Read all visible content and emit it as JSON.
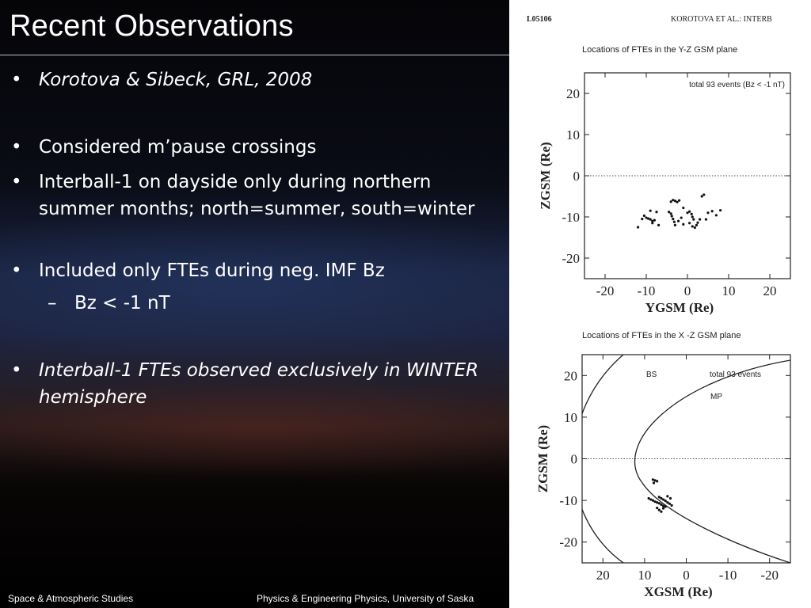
{
  "slide": {
    "title": "Recent Observations",
    "bullets": [
      {
        "text": "Korotova & Sibeck, GRL, 2008",
        "italic": true
      },
      {
        "text": "Considered m’pause crossings"
      },
      {
        "text": "Interball-1 on dayside only during northern summer months; north=summer, south=winter"
      },
      {
        "text": "Included only FTEs during neg. IMF Bz"
      },
      {
        "text": "Bz < -1 nT",
        "level": 2
      },
      {
        "text": "Interball-1 FTEs observed exclusively in WINTER hemisphere",
        "italic": true
      }
    ],
    "bullet_char": "•",
    "sub_bullet_char": "–",
    "footer_left": "Space & Atmospheric Studies",
    "footer_right": "Physics & Engineering Physics, University of Saska"
  },
  "paper": {
    "header_left": "L05106",
    "header_right": "KOROTOVA ET AL.: INTERB"
  },
  "chart_data": [
    {
      "type": "scatter",
      "title": "Locations of FTEs  in the Y-Z GSM plane",
      "annotation": "total 93 events  (Bz <  -1 nT)",
      "xlabel": "YGSM (Re)",
      "ylabel": "ZGSM (Re)",
      "xlim": [
        -25,
        25
      ],
      "ylim": [
        -25,
        25
      ],
      "xticks": [
        -20,
        -10,
        0,
        10,
        20
      ],
      "yticks": [
        20,
        10,
        0,
        -10,
        -20
      ],
      "zero_line": "dotted",
      "points": [
        [
          -12,
          -12.5
        ],
        [
          -11,
          -10.5
        ],
        [
          -10.5,
          -9.7
        ],
        [
          -10,
          -10.2
        ],
        [
          -9.5,
          -10.4
        ],
        [
          -9,
          -10.6
        ],
        [
          -8.5,
          -11
        ],
        [
          -8,
          -10.8
        ],
        [
          -9,
          -8.5
        ],
        [
          -8.5,
          -11.5
        ],
        [
          -7.5,
          -8.8
        ],
        [
          -7,
          -12
        ],
        [
          -4.5,
          -8.8
        ],
        [
          -4,
          -9.2
        ],
        [
          -3.8,
          -9.8
        ],
        [
          -3.5,
          -10.5
        ],
        [
          -3.2,
          -11.2
        ],
        [
          -3,
          -12
        ],
        [
          -4,
          -6.3
        ],
        [
          -3.5,
          -5.9
        ],
        [
          -3,
          -6.1
        ],
        [
          -2.5,
          -6.4
        ],
        [
          -2,
          -6.0
        ],
        [
          -1,
          -7.8
        ],
        [
          -1.5,
          -10.2
        ],
        [
          -2.2,
          -11
        ],
        [
          -1,
          -11.8
        ],
        [
          0,
          -9
        ],
        [
          0.5,
          -8.7
        ],
        [
          1,
          -9.3
        ],
        [
          1.2,
          -10
        ],
        [
          1.5,
          -10.6
        ],
        [
          0.5,
          -11.5
        ],
        [
          1.2,
          -12.3
        ],
        [
          1.8,
          -12.6
        ],
        [
          2.2,
          -12
        ],
        [
          2.5,
          -11.4
        ],
        [
          3,
          -10.6
        ],
        [
          3.5,
          -5
        ],
        [
          4,
          -4.6
        ],
        [
          5,
          -9
        ],
        [
          6,
          -8.6
        ],
        [
          7,
          -9.6
        ],
        [
          8,
          -8.4
        ],
        [
          4.5,
          -10.6
        ]
      ]
    },
    {
      "type": "scatter",
      "title": "Locations of FTEs in the X -Z GSM plane",
      "annotation": "total 93 events",
      "curve_labels": [
        "BS",
        "MP"
      ],
      "xlabel": "XGSM (Re)",
      "ylabel": "ZGSM (Re)",
      "xlim": [
        25,
        -25
      ],
      "ylim": [
        -25,
        25
      ],
      "xticks": [
        20,
        10,
        0,
        -10,
        -20
      ],
      "yticks": [
        20,
        10,
        0,
        -10,
        -20
      ],
      "zero_line": "dotted",
      "points": [
        [
          8,
          -5
        ],
        [
          7.5,
          -5.2
        ],
        [
          7,
          -5.4
        ],
        [
          7.8,
          -5.8
        ],
        [
          9,
          -9.5
        ],
        [
          8.5,
          -9.8
        ],
        [
          8,
          -10
        ],
        [
          7.5,
          -10.3
        ],
        [
          7,
          -10.5
        ],
        [
          6.5,
          -10.7
        ],
        [
          6,
          -11
        ],
        [
          5.5,
          -11.3
        ],
        [
          5,
          -11.5
        ],
        [
          6.5,
          -9.2
        ],
        [
          6,
          -9.5
        ],
        [
          5.5,
          -9.8
        ],
        [
          5,
          -10.1
        ],
        [
          4.5,
          -10.5
        ],
        [
          4,
          -10.8
        ],
        [
          4.5,
          -9
        ],
        [
          7,
          -11.8
        ],
        [
          6.5,
          -12.3
        ],
        [
          6,
          -12.7
        ],
        [
          5.5,
          -11.9
        ],
        [
          3.5,
          -11.2
        ],
        [
          3.8,
          -9.5
        ]
      ]
    }
  ]
}
